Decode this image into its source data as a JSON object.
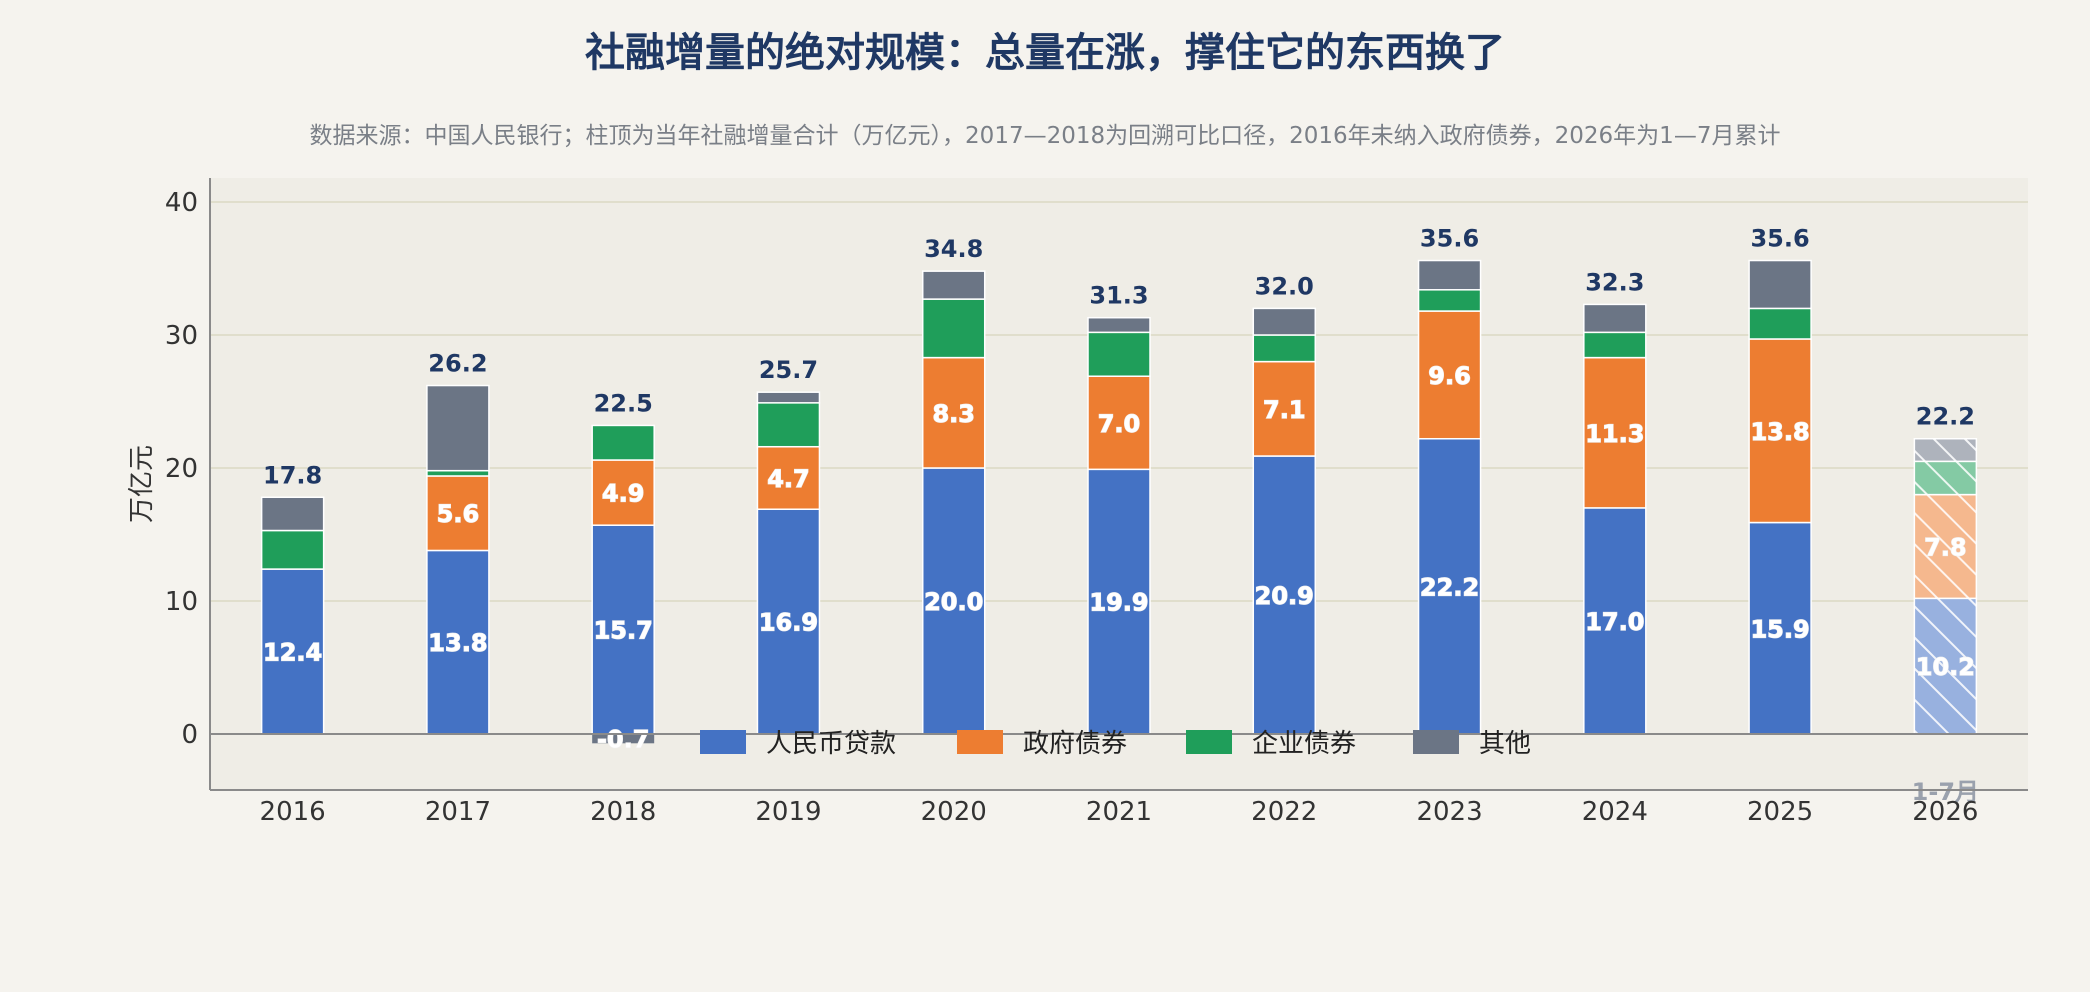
{
  "chart_data": {
    "type": "bar",
    "stacked": true,
    "title": "社融增量的绝对规模：总量在涨，撑住它的东西换了",
    "subtitle": "数据来源：中国人民银行；柱顶为当年社融增量合计（万亿元），2017—2018为回溯可比口径，2016年未纳入政府债券，2026年为1—7月累计",
    "ylabel": "万亿元",
    "xlabel": "",
    "ylim": [
      -4,
      42
    ],
    "yticks": [
      "0",
      "10",
      "20",
      "30",
      "40"
    ],
    "categories": [
      "2016",
      "2017",
      "2018",
      "2019",
      "2020",
      "2021",
      "2022",
      "2023",
      "2024",
      "2025",
      "2026"
    ],
    "partial_category_note": "1-7月",
    "series": [
      {
        "name": "人民币贷款",
        "color": "#4472c4",
        "values": [
          12.4,
          13.8,
          15.7,
          16.9,
          20.0,
          19.9,
          20.9,
          22.2,
          17.0,
          15.9,
          10.2
        ]
      },
      {
        "name": "政府债券",
        "color": "#ed7d31",
        "values": [
          0,
          5.6,
          4.9,
          4.7,
          8.3,
          7.0,
          7.1,
          9.6,
          11.3,
          13.8,
          7.8
        ]
      },
      {
        "name": "企业债券",
        "color": "#1f9e5a",
        "values": [
          2.9,
          0.4,
          2.6,
          3.3,
          4.4,
          3.3,
          2.0,
          1.6,
          1.9,
          2.3,
          2.5
        ]
      },
      {
        "name": "其他",
        "color": "#6b7585",
        "values": [
          2.5,
          6.4,
          0,
          0.8,
          2.1,
          1.1,
          2.0,
          2.2,
          2.1,
          3.6,
          1.7
        ]
      }
    ],
    "negative_values": {
      "2018": {
        "其他": -0.7
      }
    },
    "segment_labels": {
      "人民币贷款": [
        "12.4",
        "13.8",
        "15.7",
        "16.9",
        "20.0",
        "19.9",
        "20.9",
        "22.2",
        "17.0",
        "15.9",
        "10.2"
      ],
      "政府债券": [
        "",
        "5.6",
        "4.9",
        "4.7",
        "8.3",
        "7.0",
        "7.1",
        "9.6",
        "11.3",
        "13.8",
        "7.8"
      ]
    },
    "negative_label_text": "-0.7",
    "totals": [
      "17.8",
      "26.2",
      "22.5",
      "25.7",
      "34.8",
      "31.3",
      "32.0",
      "35.6",
      "32.3",
      "35.6",
      "22.2"
    ],
    "partial_style": "hatched-light",
    "grid": true,
    "legend_position": "bottom-center"
  }
}
